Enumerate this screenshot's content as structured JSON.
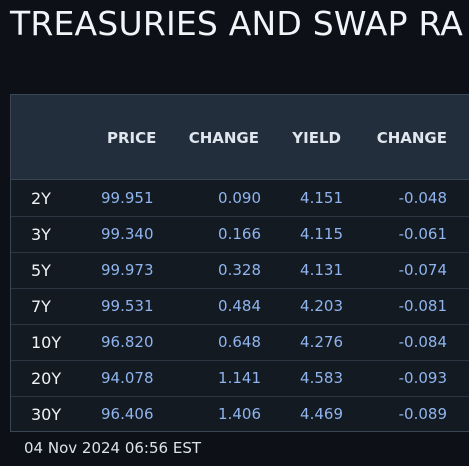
{
  "title": "TREASURIES AND SWAP RA",
  "table": {
    "headers": {
      "price": "PRICE",
      "change": "CHANGE",
      "yield": "YIELD",
      "change2": "CHANGE"
    },
    "rows": [
      {
        "tenor": "2Y",
        "price": "99.951",
        "change": "0.090",
        "yield": "4.151",
        "yield_change": "-0.048"
      },
      {
        "tenor": "3Y",
        "price": "99.340",
        "change": "0.166",
        "yield": "4.115",
        "yield_change": "-0.061"
      },
      {
        "tenor": "5Y",
        "price": "99.973",
        "change": "0.328",
        "yield": "4.131",
        "yield_change": "-0.074"
      },
      {
        "tenor": "7Y",
        "price": "99.531",
        "change": "0.484",
        "yield": "4.203",
        "yield_change": "-0.081"
      },
      {
        "tenor": "10Y",
        "price": "96.820",
        "change": "0.648",
        "yield": "4.276",
        "yield_change": "-0.084"
      },
      {
        "tenor": "20Y",
        "price": "94.078",
        "change": "1.141",
        "yield": "4.583",
        "yield_change": "-0.093"
      },
      {
        "tenor": "30Y",
        "price": "96.406",
        "change": "1.406",
        "yield": "4.469",
        "yield_change": "-0.089"
      }
    ]
  },
  "timestamp": "04 Nov 2024 06:56 EST",
  "colors": {
    "background": "#0d1117",
    "header_bg": "#222e3c",
    "value_blue": "#8fb4ee"
  }
}
